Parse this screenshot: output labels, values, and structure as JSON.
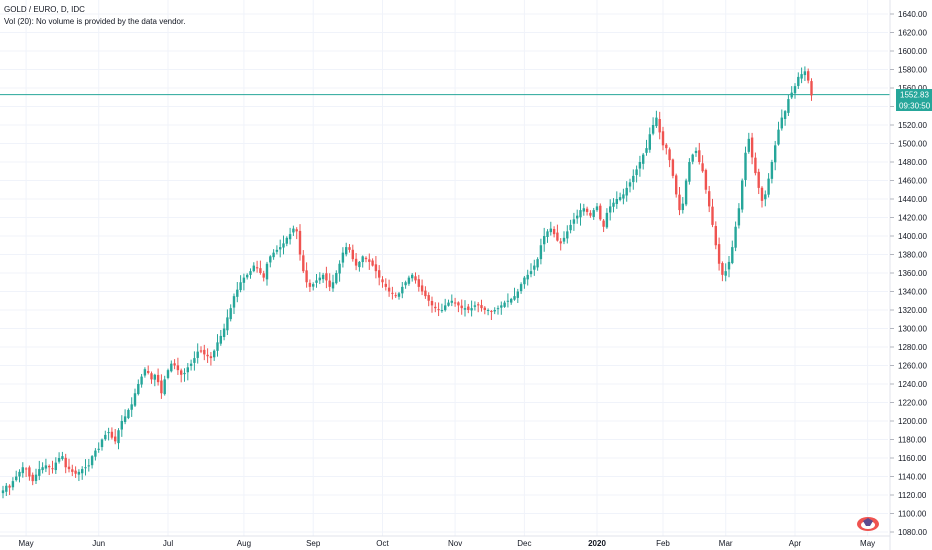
{
  "legend": {
    "symbol_line": "GOLD / EURO, D, IDC",
    "volume_line": "Vol (20): No volume is provided by the data vendor."
  },
  "price_badge": {
    "value": "1552.83",
    "countdown": "09:30:50"
  },
  "colors": {
    "up": "#26a69a",
    "down": "#ef5350",
    "grid": "#f0f3fa",
    "price_line": "#26a69a",
    "axis_text": "#131722",
    "badge_bg": "#26a69a"
  },
  "chart_data": {
    "type": "candlestick",
    "title": "",
    "xlabel": "",
    "ylabel": "",
    "ylim": [
      1080,
      1650
    ],
    "y_ticks": [
      "1080.00",
      "1100.00",
      "1120.00",
      "1140.00",
      "1160.00",
      "1180.00",
      "1200.00",
      "1220.00",
      "1240.00",
      "1260.00",
      "1280.00",
      "1300.00",
      "1320.00",
      "1340.00",
      "1360.00",
      "1380.00",
      "1400.00",
      "1420.00",
      "1440.00",
      "1460.00",
      "1480.00",
      "1500.00",
      "1520.00",
      "1540.00",
      "1560.00",
      "1580.00",
      "1600.00",
      "1620.00",
      "1640.00"
    ],
    "x_ticks": [
      {
        "label": "May",
        "bold": false
      },
      {
        "label": "Jun",
        "bold": false
      },
      {
        "label": "Jul",
        "bold": false
      },
      {
        "label": "Aug",
        "bold": false
      },
      {
        "label": "Sep",
        "bold": false
      },
      {
        "label": "Oct",
        "bold": false
      },
      {
        "label": "Nov",
        "bold": false
      },
      {
        "label": "Dec",
        "bold": false
      },
      {
        "label": "2020",
        "bold": true
      },
      {
        "label": "Feb",
        "bold": false
      },
      {
        "label": "Mar",
        "bold": false
      },
      {
        "label": "Apr",
        "bold": false
      },
      {
        "label": "May",
        "bold": false
      }
    ],
    "x_tick_index": [
      7,
      29,
      50,
      73,
      94,
      115,
      137,
      158,
      180,
      200,
      219,
      240,
      262
    ],
    "last_price": 1552.83,
    "series": [
      {
        "close_path": [
          1125,
          1130,
          1128,
          1135,
          1140,
          1145,
          1150,
          1148,
          1140,
          1135,
          1142,
          1148,
          1150,
          1152,
          1150,
          1148,
          1155,
          1160,
          1162,
          1150,
          1148,
          1145,
          1143,
          1145,
          1148,
          1150,
          1152,
          1162,
          1168,
          1170,
          1180,
          1185,
          1188,
          1182,
          1178,
          1190,
          1200,
          1205,
          1212,
          1218,
          1230,
          1240,
          1248,
          1256,
          1252,
          1245,
          1250,
          1242,
          1230,
          1245,
          1255,
          1262,
          1260,
          1255,
          1250,
          1252,
          1258,
          1262,
          1268,
          1275,
          1275,
          1272,
          1270,
          1268,
          1276,
          1285,
          1292,
          1300,
          1312,
          1322,
          1335,
          1342,
          1350,
          1355,
          1358,
          1362,
          1368,
          1365,
          1360,
          1355,
          1370,
          1378,
          1382,
          1385,
          1388,
          1392,
          1398,
          1402,
          1408,
          1405,
          1380,
          1362,
          1350,
          1345,
          1348,
          1352,
          1355,
          1358,
          1352,
          1345,
          1350,
          1360,
          1370,
          1382,
          1388,
          1385,
          1375,
          1368,
          1372,
          1378,
          1375,
          1372,
          1368,
          1362,
          1355,
          1350,
          1345,
          1340,
          1338,
          1335,
          1338,
          1345,
          1350,
          1355,
          1358,
          1352,
          1345,
          1340,
          1335,
          1330,
          1325,
          1322,
          1320,
          1320,
          1325,
          1328,
          1330,
          1328,
          1325,
          1322,
          1322,
          1320,
          1322,
          1325,
          1325,
          1322,
          1320,
          1320,
          1318,
          1320,
          1322,
          1325,
          1328,
          1330,
          1332,
          1335,
          1340,
          1348,
          1355,
          1358,
          1362,
          1368,
          1375,
          1390,
          1400,
          1405,
          1408,
          1402,
          1395,
          1392,
          1398,
          1405,
          1412,
          1418,
          1422,
          1428,
          1430,
          1426,
          1422,
          1428,
          1432,
          1418,
          1410,
          1425,
          1432,
          1436,
          1440,
          1442,
          1445,
          1452,
          1458,
          1465,
          1472,
          1480,
          1488,
          1495,
          1510,
          1520,
          1528,
          1512,
          1498,
          1495,
          1482,
          1465,
          1445,
          1428,
          1435,
          1460,
          1480,
          1488,
          1492,
          1480,
          1470,
          1450,
          1432,
          1412,
          1390,
          1370,
          1358,
          1362,
          1372,
          1388,
          1410,
          1430,
          1460,
          1490,
          1505,
          1485,
          1468,
          1452,
          1438,
          1445,
          1462,
          1480,
          1498,
          1515,
          1528,
          1535,
          1548,
          1555,
          1562,
          1572,
          1575,
          1578,
          1568,
          1552
        ]
      }
    ]
  }
}
